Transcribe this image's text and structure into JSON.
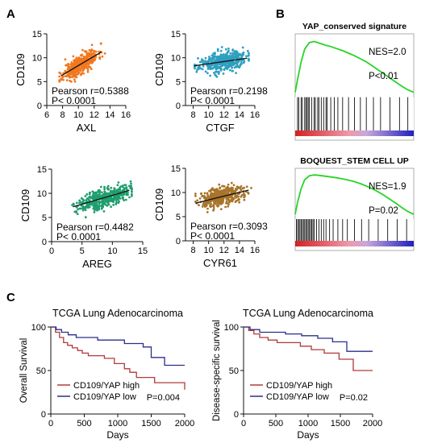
{
  "panel_labels": {
    "a": "A",
    "b": "B",
    "c": "C"
  },
  "colors": {
    "orange": "#f07820",
    "teal": "#2e9fc0",
    "green": "#1f9e6e",
    "brown": "#a8742a",
    "gsea_curve": "#28d428",
    "red_line": "#b03a3a",
    "blue_line": "#2a2f8c"
  },
  "chart_data": [
    {
      "type": "scatter",
      "id": "axl",
      "xlabel": "AXL",
      "ylabel": "CD109",
      "xlim": [
        6,
        16
      ],
      "ylim": [
        0,
        15
      ],
      "xticks": [
        6,
        8,
        10,
        12,
        14,
        16
      ],
      "yticks": [
        0,
        5,
        10,
        15
      ],
      "point_cloud": {
        "x_center": 10.3,
        "x_sd": 1.1,
        "x_min": 7.6,
        "x_max": 13.6,
        "y_min": 5.0,
        "y_max": 13.0,
        "n": 420
      },
      "regression": {
        "x": [
          7.8,
          12.9
        ],
        "y": [
          6.2,
          11.2
        ]
      },
      "stats": {
        "r": "Pearson r=0.5388",
        "p": "P< 0.0001"
      },
      "color": "#f07820"
    },
    {
      "type": "scatter",
      "id": "ctgf",
      "xlabel": "CTGF",
      "ylabel": "CD109",
      "xlim": [
        7,
        16
      ],
      "ylim": [
        0,
        15
      ],
      "xticks": [
        8,
        10,
        12,
        14,
        16
      ],
      "yticks": [
        0,
        5,
        10,
        15
      ],
      "point_cloud": {
        "x_center": 11.8,
        "x_sd": 1.5,
        "x_min": 8.2,
        "x_max": 15.2,
        "y_min": 6.0,
        "y_max": 12.6,
        "n": 420
      },
      "regression": {
        "x": [
          8.1,
          15.0
        ],
        "y": [
          8.3,
          9.9
        ]
      },
      "stats": {
        "r": "Pearson r=0.2198",
        "p": "P< 0.0001"
      },
      "color": "#2e9fc0"
    },
    {
      "type": "scatter",
      "id": "areg",
      "xlabel": "AREG",
      "ylabel": "CD109",
      "xlim": [
        0,
        15
      ],
      "ylim": [
        0,
        15
      ],
      "xticks": [
        0,
        5,
        10,
        15
      ],
      "yticks": [
        0,
        5,
        10,
        15
      ],
      "point_cloud": {
        "x_center": 8.6,
        "x_sd": 2.1,
        "x_min": 3.4,
        "x_max": 13.2,
        "y_min": 5.0,
        "y_max": 12.6,
        "n": 420
      },
      "regression": {
        "x": [
          3.5,
          12.8
        ],
        "y": [
          7.2,
          10.6
        ]
      },
      "stats": {
        "r": "Pearson r=0.4482",
        "p": "P< 0.0001"
      },
      "color": "#1f9e6e"
    },
    {
      "type": "scatter",
      "id": "cyr61",
      "xlabel": "CYR61",
      "ylabel": "CD109",
      "xlim": [
        7,
        16
      ],
      "ylim": [
        0,
        15
      ],
      "xticks": [
        8,
        10,
        12,
        14,
        16
      ],
      "yticks": [
        0,
        5,
        10,
        15
      ],
      "point_cloud": {
        "x_center": 11.8,
        "x_sd": 1.4,
        "x_min": 8.3,
        "x_max": 15.6,
        "y_min": 5.5,
        "y_max": 13.0,
        "n": 420
      },
      "regression": {
        "x": [
          8.3,
          15.2
        ],
        "y": [
          7.8,
          10.5
        ]
      },
      "stats": {
        "r": "Pearson r=0.3093",
        "p": "P< 0.0001"
      },
      "color": "#a8742a"
    },
    {
      "type": "line",
      "id": "gsea1",
      "title": "YAP_conserved signature",
      "stats": {
        "nes": "NES=2.0",
        "p": "P<0.01"
      },
      "curve": {
        "x": [
          0,
          0.02,
          0.05,
          0.08,
          0.12,
          0.16,
          0.2,
          0.25,
          0.3,
          0.35,
          0.4,
          0.45,
          0.5,
          0.55,
          0.6,
          0.65,
          0.7,
          0.75,
          0.8,
          0.85,
          0.9,
          0.95,
          1.0
        ],
        "y": [
          0,
          0.25,
          0.6,
          0.85,
          0.98,
          1.0,
          0.97,
          0.93,
          0.9,
          0.86,
          0.82,
          0.77,
          0.72,
          0.66,
          0.6,
          0.52,
          0.44,
          0.36,
          0.28,
          0.2,
          0.12,
          0.05,
          0.0
        ]
      },
      "hits": [
        0.02,
        0.03,
        0.05,
        0.06,
        0.08,
        0.09,
        0.1,
        0.11,
        0.12,
        0.14,
        0.16,
        0.17,
        0.19,
        0.2,
        0.22,
        0.24,
        0.26,
        0.27,
        0.3,
        0.33,
        0.36,
        0.4,
        0.45,
        0.5,
        0.55,
        0.6,
        0.66,
        0.72,
        0.8,
        0.88,
        0.95
      ]
    },
    {
      "type": "line",
      "id": "gsea2",
      "title": "BOQUEST_STEM CELL UP",
      "stats": {
        "nes": "NES=1.9",
        "p": "P=0.02"
      },
      "curve": {
        "x": [
          0,
          0.02,
          0.05,
          0.08,
          0.12,
          0.16,
          0.2,
          0.25,
          0.3,
          0.35,
          0.4,
          0.45,
          0.5,
          0.55,
          0.6,
          0.65,
          0.7,
          0.75,
          0.8,
          0.85,
          0.9,
          0.95,
          1.0
        ],
        "y": [
          0,
          0.3,
          0.65,
          0.88,
          0.98,
          1.0,
          0.99,
          0.97,
          0.95,
          0.93,
          0.9,
          0.87,
          0.83,
          0.78,
          0.72,
          0.65,
          0.57,
          0.48,
          0.38,
          0.28,
          0.17,
          0.07,
          0.0
        ]
      },
      "hits": [
        0.01,
        0.02,
        0.03,
        0.04,
        0.05,
        0.06,
        0.07,
        0.08,
        0.09,
        0.1,
        0.11,
        0.12,
        0.13,
        0.14,
        0.15,
        0.16,
        0.18,
        0.2,
        0.22,
        0.24,
        0.26,
        0.29,
        0.32,
        0.36,
        0.4,
        0.44,
        0.5,
        0.56,
        0.62,
        0.7,
        0.78,
        0.86,
        0.94
      ]
    },
    {
      "type": "line",
      "id": "km_os",
      "title": "TCGA Lung Adenocarcinoma",
      "xlabel": "Days",
      "ylabel": "Overall Survival",
      "xlim": [
        0,
        2000
      ],
      "ylim": [
        0,
        100
      ],
      "xticks": [
        0,
        500,
        1000,
        1500,
        2000
      ],
      "yticks": [
        0,
        50,
        100
      ],
      "series": [
        {
          "name": "CD109/YAP high",
          "color": "#b03a3a",
          "x": [
            0,
            70,
            130,
            190,
            250,
            320,
            400,
            470,
            560,
            680,
            800,
            950,
            1100,
            1180,
            1280,
            1450,
            1550,
            1950,
            2000
          ],
          "y": [
            100,
            94,
            88,
            82,
            79,
            76,
            73,
            70,
            67,
            67,
            64,
            58,
            52,
            48,
            42,
            42,
            36,
            36,
            28
          ]
        },
        {
          "name": "CD109/YAP low",
          "color": "#2a2f8c",
          "x": [
            0,
            80,
            160,
            260,
            380,
            520,
            700,
            900,
            1100,
            1380,
            1500,
            1700,
            2000
          ],
          "y": [
            100,
            97,
            94,
            91,
            88,
            88,
            85,
            85,
            81,
            77,
            65,
            56,
            56
          ]
        }
      ],
      "stats": {
        "p": "P=0.004"
      }
    },
    {
      "type": "line",
      "id": "km_dss",
      "title": "TCGA Lung Adenocarcinoma",
      "xlabel": "Days",
      "ylabel": "Disease-specific survival",
      "xlim": [
        0,
        2000
      ],
      "ylim": [
        0,
        100
      ],
      "xticks": [
        0,
        500,
        1000,
        1500,
        2000
      ],
      "yticks": [
        0,
        50,
        100
      ],
      "series": [
        {
          "name": "CD109/YAP high",
          "color": "#b03a3a",
          "x": [
            0,
            80,
            160,
            250,
            380,
            520,
            700,
            880,
            1050,
            1250,
            1480,
            1700,
            2000
          ],
          "y": [
            100,
            96,
            92,
            88,
            85,
            82,
            82,
            78,
            74,
            70,
            63,
            50,
            50
          ]
        },
        {
          "name": "CD109/YAP low",
          "color": "#2a2f8c",
          "x": [
            0,
            100,
            250,
            420,
            650,
            900,
            1150,
            1380,
            1600,
            2000
          ],
          "y": [
            100,
            97,
            94,
            94,
            92,
            90,
            87,
            83,
            72,
            72
          ]
        }
      ],
      "stats": {
        "p": "P=0.02"
      }
    }
  ]
}
